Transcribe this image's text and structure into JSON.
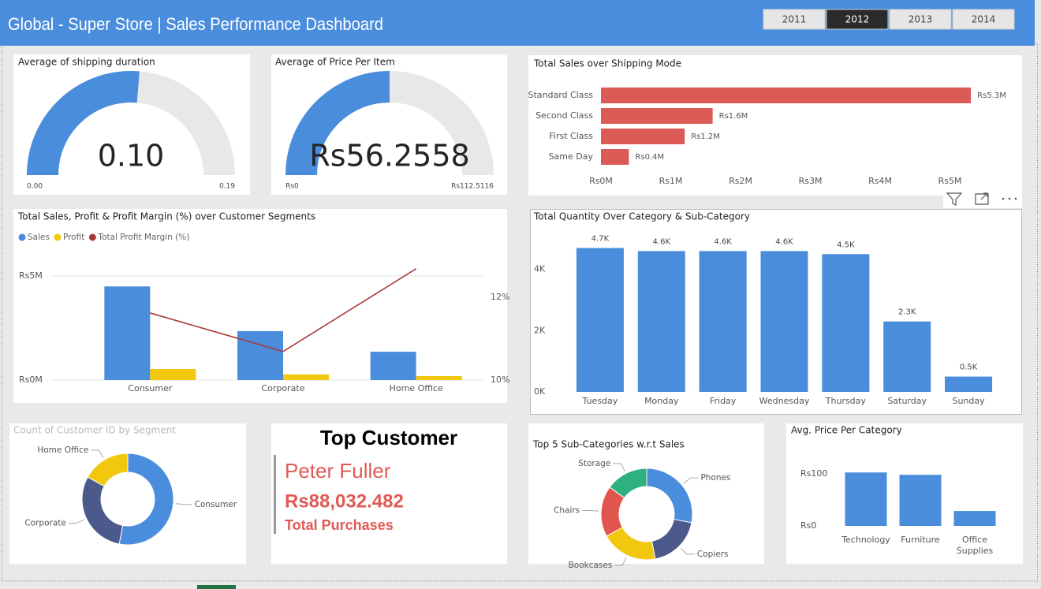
{
  "header": {
    "title": "Global - Super Store | Sales Performance Dashboard"
  },
  "year_tabs": {
    "labels": [
      "2011",
      "2012",
      "2013",
      "2014"
    ],
    "active": 1
  },
  "chart_data": [
    {
      "type": "gauge",
      "title": "Average of shipping duration",
      "values": [
        0.1
      ],
      "value_labels": [
        "0.10"
      ],
      "color": "#4a8ddc",
      "ylim": [
        0,
        0.19
      ],
      "yticks": [
        {
          "value": 0,
          "label": "0.00"
        },
        0.19
      ]
    },
    {
      "type": "gauge",
      "title": "Average of Price Per Item",
      "values": [
        56.2558
      ],
      "value_labels": [
        "Rs56.2558"
      ],
      "color": "#4a8ddc",
      "ylim": [
        0,
        112.5116
      ],
      "yticks": [
        {
          "value": 0,
          "label": "Rs0"
        },
        {
          "value": 112.5116,
          "label": "Rs112.5116"
        }
      ]
    },
    {
      "type": "bar",
      "orientation": "horizontal",
      "title": "Total Sales over Shipping Mode",
      "categories": [
        "Standard Class",
        "Second Class",
        "First Class",
        "Same Day"
      ],
      "values": [
        5300000,
        1600000,
        1200000,
        400000
      ],
      "value_labels": [
        "Rs5.3M",
        "Rs1.6M",
        "Rs1.2M",
        "Rs0.4M"
      ],
      "color": "#dd5b57",
      "xlim": [
        0,
        5400000
      ],
      "xticks": [
        {
          "value": 0,
          "label": "Rs0M"
        },
        {
          "value": 1000000,
          "label": "Rs1M"
        },
        {
          "value": 2000000,
          "label": "Rs2M"
        },
        {
          "value": 3000000,
          "label": "Rs3M"
        },
        {
          "value": 4000000,
          "label": "Rs4M"
        },
        {
          "value": 5000000,
          "label": "Rs5M"
        }
      ]
    },
    {
      "type": "bar_line",
      "title": "Total Sales, Profit & Profit Margin (%) over Customer Segments",
      "categories": [
        "Consumer",
        "Corporate",
        "Home Office"
      ],
      "series": [
        {
          "name": "Sales",
          "color": "#4a8ddc",
          "values": [
            4500000,
            2350000,
            1360000
          ]
        },
        {
          "name": "Profit",
          "color": "#f2c80f",
          "values": [
            530000,
            270000,
            190000
          ]
        },
        {
          "name": "Total Profit Margin (%)",
          "color": "#a83a3a",
          "type": "line",
          "axis": "y2",
          "values": [
            11.62,
            10.69,
            12.69
          ]
        }
      ],
      "ylim": [
        0,
        5570000
      ],
      "yticks": [
        {
          "value": 0,
          "label": "Rs0M"
        },
        {
          "value": 5000000,
          "label": "Rs5M"
        }
      ],
      "y2lim": [
        10,
        12.8
      ],
      "y2ticks": [
        {
          "value": 10,
          "label": "10%"
        },
        {
          "value": 12,
          "label": "12%"
        }
      ],
      "grid": true
    },
    {
      "type": "bar",
      "title": "Total Quantity Over Category & Sub-Category",
      "categories": [
        "Tuesday",
        "Monday",
        "Friday",
        "Wednesday",
        "Thursday",
        "Saturday",
        "Sunday"
      ],
      "values": [
        4700,
        4600,
        4600,
        4600,
        4500,
        2300,
        500
      ],
      "value_labels": [
        "4.7K",
        "4.6K",
        "4.6K",
        "4.6K",
        "4.5K",
        "2.3K",
        "0.5K"
      ],
      "color": "#4a8ddc",
      "ylim": [
        0,
        5100
      ],
      "yticks": [
        {
          "value": 0,
          "label": "0K"
        },
        {
          "value": 2000,
          "label": "2K"
        },
        {
          "value": 4000,
          "label": "4K"
        }
      ]
    },
    {
      "type": "donut",
      "title": "Count of Customer ID by Segment",
      "categories": [
        "Consumer",
        "Corporate",
        "Home Office"
      ],
      "values": [
        53,
        30,
        17
      ],
      "colors": [
        "#4a8ddc",
        "#4b5a8a",
        "#f2c80f"
      ]
    },
    {
      "type": "donut",
      "title": "Top 5 Sub-Categories w.r.t Sales",
      "categories": [
        "Phones",
        "Copiers",
        "Bookcases",
        "Chairs",
        "Storage"
      ],
      "values": [
        28,
        19,
        20,
        18,
        15
      ],
      "colors": [
        "#4a8ddc",
        "#4b5a8a",
        "#f2c80f",
        "#e0564f",
        "#2fb07f"
      ]
    },
    {
      "type": "bar",
      "title": "Avg. Price Per Category",
      "categories": [
        "Technology",
        "Furniture",
        "Office Supplies"
      ],
      "values": [
        103,
        98.5,
        28.8
      ],
      "color": "#4a8ddc",
      "ylim": [
        0,
        117
      ],
      "yticks": [
        {
          "value": 0,
          "label": "Rs0"
        },
        {
          "value": 100,
          "label": "Rs100"
        }
      ]
    }
  ],
  "top_customer": {
    "title": "Top Customer",
    "name": "Peter Fuller",
    "amount": "Rs88,032.482",
    "caption": "Total Purchases"
  }
}
